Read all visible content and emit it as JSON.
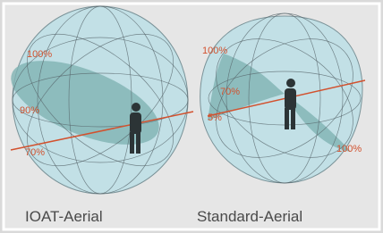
{
  "figures": [
    {
      "caption": "IOAT-Aerial",
      "labels": [
        "100%",
        "90%",
        "70%"
      ]
    },
    {
      "caption": "Standard-Aerial",
      "labels": [
        "100%",
        "70%",
        "5%",
        "100%"
      ]
    }
  ]
}
